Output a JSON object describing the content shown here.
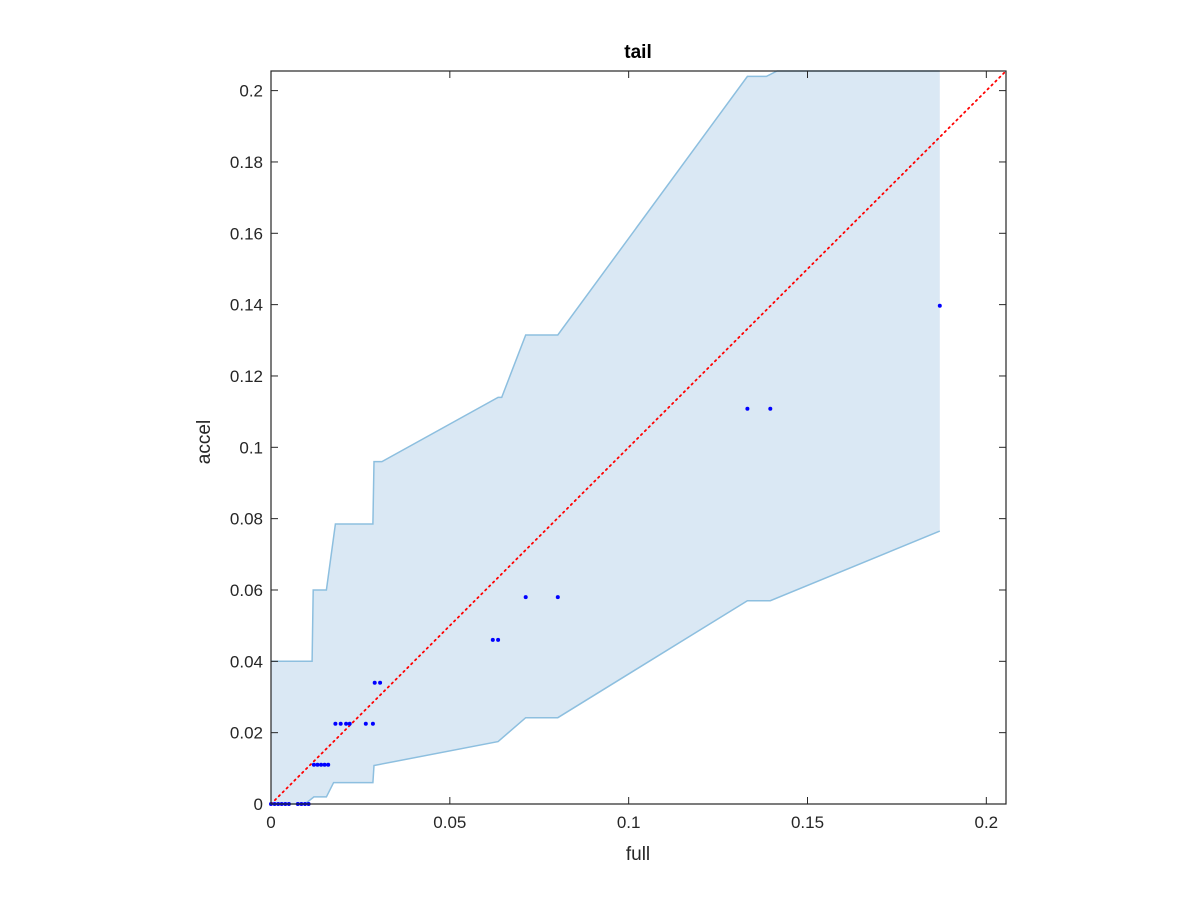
{
  "chart_data": {
    "type": "scatter",
    "title": "tail",
    "xlabel": "full",
    "ylabel": "accel",
    "xlim": [
      0,
      0.2055
    ],
    "ylim": [
      0,
      0.2055
    ],
    "xticks": [
      0,
      0.05,
      0.1,
      0.15,
      0.2
    ],
    "xtick_labels": [
      "0",
      "0.05",
      "0.1",
      "0.15",
      "0.2"
    ],
    "yticks": [
      0,
      0.02,
      0.04,
      0.06,
      0.08,
      0.1,
      0.12,
      0.14,
      0.16,
      0.18,
      0.2
    ],
    "ytick_labels": [
      "0",
      "0.02",
      "0.04",
      "0.06",
      "0.08",
      "0.1",
      "0.12",
      "0.14",
      "0.16",
      "0.18",
      "0.2"
    ],
    "grid": false,
    "colors": {
      "band_fill": "#dae8f4",
      "band_edge": "#8dbfdf",
      "points": "#0000ff",
      "reference_line": "#ff0000",
      "axes": "#262626"
    },
    "points": [
      {
        "x": 0,
        "y": 0
      },
      {
        "x": 0.001,
        "y": 0
      },
      {
        "x": 0.002,
        "y": 0
      },
      {
        "x": 0.003,
        "y": 0
      },
      {
        "x": 0.004,
        "y": 0
      },
      {
        "x": 0.005,
        "y": 0
      },
      {
        "x": 0.0075,
        "y": 0
      },
      {
        "x": 0.0085,
        "y": 0
      },
      {
        "x": 0.0095,
        "y": 0
      },
      {
        "x": 0.0105,
        "y": 0
      },
      {
        "x": 0.012,
        "y": 0.011
      },
      {
        "x": 0.013,
        "y": 0.011
      },
      {
        "x": 0.014,
        "y": 0.011
      },
      {
        "x": 0.015,
        "y": 0.011
      },
      {
        "x": 0.016,
        "y": 0.011
      },
      {
        "x": 0.018,
        "y": 0.0225
      },
      {
        "x": 0.0195,
        "y": 0.0225
      },
      {
        "x": 0.021,
        "y": 0.0225
      },
      {
        "x": 0.022,
        "y": 0.0225
      },
      {
        "x": 0.0265,
        "y": 0.0225
      },
      {
        "x": 0.0285,
        "y": 0.0225
      },
      {
        "x": 0.029,
        "y": 0.034
      },
      {
        "x": 0.0305,
        "y": 0.034
      },
      {
        "x": 0.062,
        "y": 0.046
      },
      {
        "x": 0.0635,
        "y": 0.046
      },
      {
        "x": 0.0712,
        "y": 0.058
      },
      {
        "x": 0.0802,
        "y": 0.058
      },
      {
        "x": 0.1332,
        "y": 0.1108
      },
      {
        "x": 0.1396,
        "y": 0.1108
      },
      {
        "x": 0.187,
        "y": 0.1397
      }
    ],
    "band_upper": [
      [
        0,
        0.04
      ],
      [
        0.01,
        0.04
      ],
      [
        0.0115,
        0.04
      ],
      [
        0.0118,
        0.06
      ],
      [
        0.0155,
        0.06
      ],
      [
        0.018,
        0.0785
      ],
      [
        0.0285,
        0.0785
      ],
      [
        0.0288,
        0.096
      ],
      [
        0.031,
        0.096
      ],
      [
        0.0635,
        0.114
      ],
      [
        0.0645,
        0.114
      ],
      [
        0.0712,
        0.1315
      ],
      [
        0.0802,
        0.1315
      ],
      [
        0.1332,
        0.204
      ],
      [
        0.1385,
        0.204
      ],
      [
        0.1415,
        0.2055
      ],
      [
        0.187,
        0.2055
      ]
    ],
    "band_lower": [
      [
        0.187,
        0.0765
      ],
      [
        0.1396,
        0.057
      ],
      [
        0.1332,
        0.057
      ],
      [
        0.0802,
        0.0242
      ],
      [
        0.0712,
        0.0242
      ],
      [
        0.0635,
        0.0175
      ],
      [
        0.0288,
        0.0108
      ],
      [
        0.0285,
        0.006
      ],
      [
        0.0175,
        0.006
      ],
      [
        0.0155,
        0.002
      ],
      [
        0.012,
        0.002
      ],
      [
        0.0095,
        0
      ],
      [
        0,
        0
      ]
    ],
    "reference_line": {
      "from": [
        0,
        0
      ],
      "to": [
        0.2055,
        0.2055
      ],
      "style": "dotted"
    }
  }
}
